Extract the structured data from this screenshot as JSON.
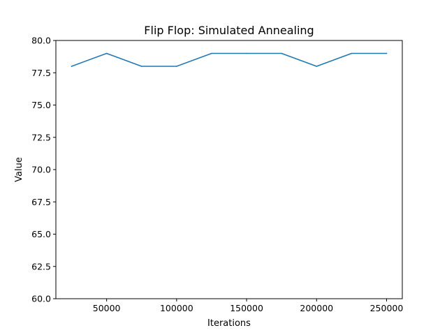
{
  "chart_data": {
    "type": "line",
    "title": "Flip Flop: Simulated Annealing",
    "xlabel": "Iterations",
    "ylabel": "Value",
    "xlim": [
      13750,
      261250
    ],
    "ylim": [
      60,
      80
    ],
    "grid": false,
    "legend": "none",
    "x_ticks": [
      {
        "value": 50000,
        "label": "50000"
      },
      {
        "value": 100000,
        "label": "100000"
      },
      {
        "value": 150000,
        "label": "150000"
      },
      {
        "value": 200000,
        "label": "200000"
      },
      {
        "value": 250000,
        "label": "250000"
      }
    ],
    "y_ticks": [
      {
        "value": 60,
        "label": "60.0"
      },
      {
        "value": 62.5,
        "label": "62.5"
      },
      {
        "value": 65,
        "label": "65.0"
      },
      {
        "value": 67.5,
        "label": "67.5"
      },
      {
        "value": 70,
        "label": "70.0"
      },
      {
        "value": 72.5,
        "label": "72.5"
      },
      {
        "value": 75,
        "label": "75.0"
      },
      {
        "value": 77.5,
        "label": "77.5"
      },
      {
        "value": 80,
        "label": "80.0"
      }
    ],
    "series": [
      {
        "color": "#1f77b4",
        "x": [
          25000,
          50000,
          75000,
          100000,
          125000,
          150000,
          175000,
          200000,
          225000,
          250000
        ],
        "y": [
          78,
          79,
          78,
          78,
          79,
          79,
          79,
          78,
          79,
          79
        ]
      }
    ]
  }
}
